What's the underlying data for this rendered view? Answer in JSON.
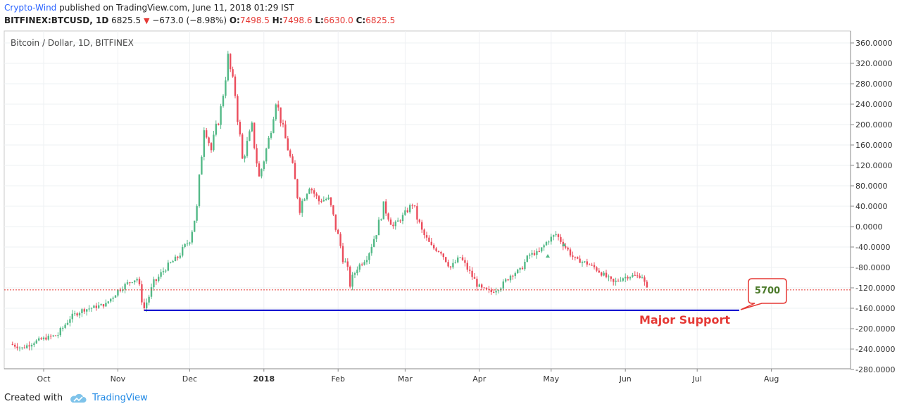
{
  "header": {
    "author": "Crypto-Wind",
    "published": "published on TradingView.com, June 11, 2018 01:29 IST"
  },
  "ohlc": {
    "symbol": "BITFINEX:BTCUSD, 1D",
    "last": "6825.5",
    "change": "−673.0 (−8.98%)",
    "o_label": "O:",
    "o": "7498.5",
    "h_label": "H:",
    "h": "7498.6",
    "l_label": "L:",
    "l": "6630.0",
    "c_label": "C:",
    "c": "6825.5"
  },
  "footer": {
    "created_with": "Created with",
    "brand": "TradingView"
  },
  "colors": {
    "up": "#53b987",
    "down": "#eb4d5c",
    "support": "#0000cc",
    "dotted": "#e53935",
    "annotation": "#e53935",
    "callout_text": "#4b7a2a"
  },
  "chart_data": {
    "type": "candlestick",
    "title": "Bitcoin / Dollar, 1D, BITFINEX",
    "ylim": [
      -280,
      360
    ],
    "yticks": [
      "360.0000",
      "320.0000",
      "280.0000",
      "240.0000",
      "200.0000",
      "160.0000",
      "120.0000",
      "80.0000",
      "40.0000",
      "0.0000",
      "-40.0000",
      "-80.0000",
      "-120.0000",
      "-160.0000",
      "-200.0000",
      "-240.0000",
      "-280.0000"
    ],
    "xticks": [
      "Oct",
      "Nov",
      "Dec",
      "2018",
      "Feb",
      "Mar",
      "Apr",
      "May",
      "Jun",
      "Jul",
      "Aug"
    ],
    "current_price_line": -124,
    "support": {
      "value": -164,
      "label": "Major Support",
      "callout": "5700"
    },
    "series": [
      {
        "date": "2017-09-17",
        "close": -230
      },
      {
        "date": "2017-09-22",
        "close": -238
      },
      {
        "date": "2017-09-27",
        "close": -226
      },
      {
        "date": "2017-10-02",
        "close": -218
      },
      {
        "date": "2017-10-07",
        "close": -212
      },
      {
        "date": "2017-10-12",
        "close": -178
      },
      {
        "date": "2017-10-17",
        "close": -164
      },
      {
        "date": "2017-10-22",
        "close": -158
      },
      {
        "date": "2017-10-27",
        "close": -152
      },
      {
        "date": "2017-11-01",
        "close": -125
      },
      {
        "date": "2017-11-06",
        "close": -108
      },
      {
        "date": "2017-11-09",
        "close": -102
      },
      {
        "date": "2017-11-12",
        "close": -160
      },
      {
        "date": "2017-11-16",
        "close": -112
      },
      {
        "date": "2017-11-21",
        "close": -80
      },
      {
        "date": "2017-11-26",
        "close": -60
      },
      {
        "date": "2017-12-01",
        "close": -25
      },
      {
        "date": "2017-12-04",
        "close": 35
      },
      {
        "date": "2017-12-07",
        "close": 200
      },
      {
        "date": "2017-12-10",
        "close": 150
      },
      {
        "date": "2017-12-14",
        "close": 230
      },
      {
        "date": "2017-12-17",
        "close": 330
      },
      {
        "date": "2017-12-20",
        "close": 260
      },
      {
        "date": "2017-12-23",
        "close": 130
      },
      {
        "date": "2017-12-27",
        "close": 195
      },
      {
        "date": "2017-12-30",
        "close": 95
      },
      {
        "date": "2018-01-03",
        "close": 170
      },
      {
        "date": "2018-01-06",
        "close": 250
      },
      {
        "date": "2018-01-09",
        "close": 190
      },
      {
        "date": "2018-01-12",
        "close": 135
      },
      {
        "date": "2018-01-16",
        "close": 40
      },
      {
        "date": "2018-01-20",
        "close": 80
      },
      {
        "date": "2018-01-24",
        "close": 50
      },
      {
        "date": "2018-01-28",
        "close": 55
      },
      {
        "date": "2018-02-01",
        "close": -20
      },
      {
        "date": "2018-02-06",
        "close": -110
      },
      {
        "date": "2018-02-09",
        "close": -80
      },
      {
        "date": "2018-02-13",
        "close": -60
      },
      {
        "date": "2018-02-17",
        "close": -10
      },
      {
        "date": "2018-02-20",
        "close": 40
      },
      {
        "date": "2018-02-24",
        "close": 0
      },
      {
        "date": "2018-02-28",
        "close": 20
      },
      {
        "date": "2018-03-04",
        "close": 45
      },
      {
        "date": "2018-03-08",
        "close": -10
      },
      {
        "date": "2018-03-12",
        "close": -40
      },
      {
        "date": "2018-03-16",
        "close": -50
      },
      {
        "date": "2018-03-20",
        "close": -80
      },
      {
        "date": "2018-03-24",
        "close": -60
      },
      {
        "date": "2018-03-28",
        "close": -90
      },
      {
        "date": "2018-04-01",
        "close": -120
      },
      {
        "date": "2018-04-06",
        "close": -128
      },
      {
        "date": "2018-04-10",
        "close": -118
      },
      {
        "date": "2018-04-14",
        "close": -95
      },
      {
        "date": "2018-04-18",
        "close": -85
      },
      {
        "date": "2018-04-22",
        "close": -55
      },
      {
        "date": "2018-04-26",
        "close": -50
      },
      {
        "date": "2018-04-30",
        "close": -25
      },
      {
        "date": "2018-05-03",
        "close": -15
      },
      {
        "date": "2018-05-07",
        "close": -40
      },
      {
        "date": "2018-05-11",
        "close": -65
      },
      {
        "date": "2018-05-15",
        "close": -70
      },
      {
        "date": "2018-05-19",
        "close": -80
      },
      {
        "date": "2018-05-23",
        "close": -95
      },
      {
        "date": "2018-05-27",
        "close": -110
      },
      {
        "date": "2018-05-31",
        "close": -100
      },
      {
        "date": "2018-06-04",
        "close": -96
      },
      {
        "date": "2018-06-08",
        "close": -98
      },
      {
        "date": "2018-06-10",
        "close": -124
      }
    ]
  }
}
